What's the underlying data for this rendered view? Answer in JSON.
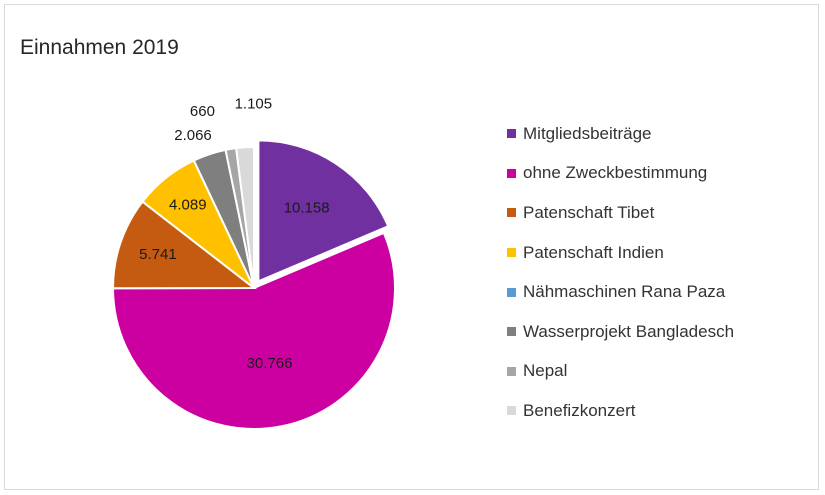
{
  "chart_data": {
    "type": "pie",
    "title": "Einnahmen 2019",
    "legend_position": "right",
    "slices": [
      {
        "label": "Mitgliedsbeiträge",
        "value": 10158,
        "display": "10.158",
        "color": "#7030a0",
        "exploded": true
      },
      {
        "label": "ohne Zweckbestimmung",
        "value": 30766,
        "display": "30.766",
        "color": "#cc00a0",
        "exploded": false
      },
      {
        "label": "Patenschaft Tibet",
        "value": 5741,
        "display": "5.741",
        "color": "#c55a11",
        "exploded": false
      },
      {
        "label": "Patenschaft Indien",
        "value": 4089,
        "display": "4.089",
        "color": "#ffc000",
        "exploded": false
      },
      {
        "label": "Nähmaschinen Rana Paza",
        "value": 0,
        "display": "",
        "color": "#5b9bd5",
        "exploded": false
      },
      {
        "label": "Wasserprojekt Bangladesch",
        "value": 2066,
        "display": "2.066",
        "color": "#7f7f7f",
        "exploded": false
      },
      {
        "label": "Nepal",
        "value": 660,
        "display": "660",
        "color": "#a6a6a6",
        "exploded": false
      },
      {
        "label": "Benefizkonzert",
        "value": 1105,
        "display": "1.105",
        "color": "#d9d9d9",
        "exploded": false
      }
    ]
  }
}
